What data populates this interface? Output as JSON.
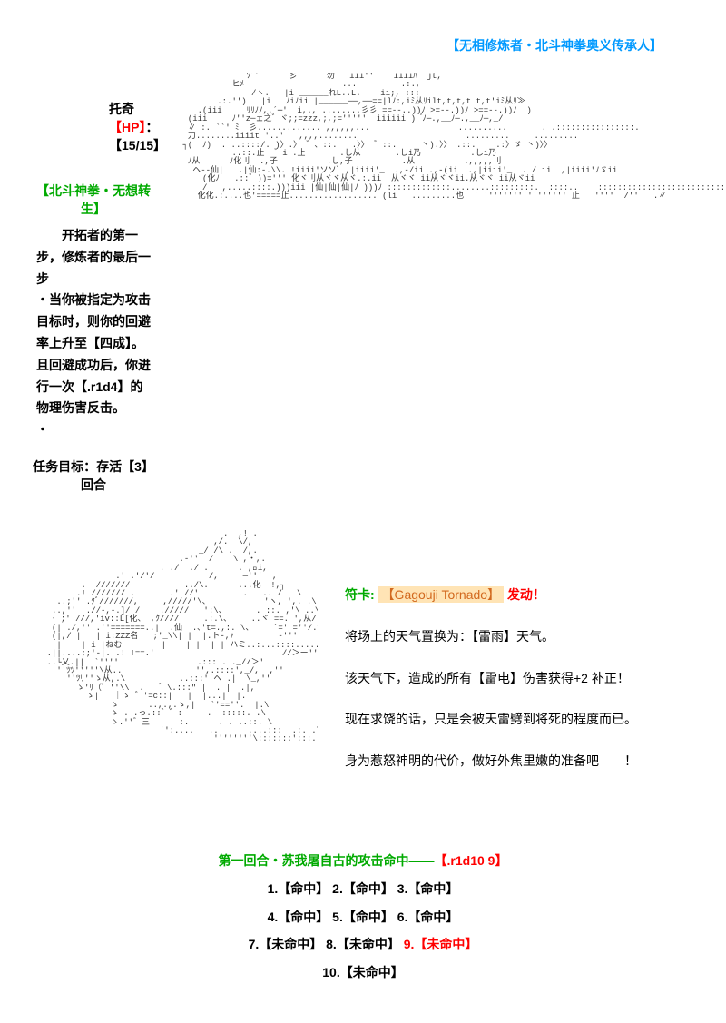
{
  "header": {
    "title": "【无相修炼者・北斗神拳奥义传承人】",
    "color": "#0099ff"
  },
  "character": {
    "name": "托奇",
    "hp_label": "【HP】",
    "hp_value": "：【15/15】"
  },
  "skill": {
    "title": "【北斗神拳・无想转生】",
    "title_color": "#00aa00",
    "line1": "开拓者的第一步，修炼者的最后一步",
    "line2": "・当你被指定为攻击目标时，则你的回避率上升至【四成】。且回避成功后，你进行一次【.r1d4】的物理伤害反击。",
    "line3": "・"
  },
  "task": {
    "label": "任务目标：",
    "value": "存活【3】回合"
  },
  "spell": {
    "prefix": "符卡:",
    "name": "【Gagouji Tornado】",
    "activate": " 发动！",
    "desc1": "将场上的天气置换为：【雷雨】天气。",
    "desc2": "该天气下，造成的所有【雷电】伤害获得+2 补正！",
    "desc3": "现在求饶的话，只是会被天雷劈到将死的程度而已。",
    "desc4": "身为惹怒神明的代价，做好外焦里嫩的准备吧——！"
  },
  "round": {
    "title_green": "第一回合・苏我屠自古的攻击命中——",
    "title_red": "【.r1d10 9】",
    "hits": [
      "1.【命中】 2.【命中】 3.【命中】",
      "4.【命中】 5.【命中】 6.【命中】"
    ],
    "miss_row_prefix": "7.【未命中】 8.【未命中】 ",
    "miss_highlight": "9.【未命中】",
    "miss_last": "10.【未命中】"
  },
  "ascii": {
    "art1": "              ｿﾞ´      彡      勿   iii''    iiiiﾊ  jt,\n           ヒﾒ                    ...         .:.,\n               /ヽ.   |i ______れL..L.    ii;, :::\n        .:.'')   |i   ﾉiﾉii |______──,──==|lﾉ:,iﾐ从ﾘilt,t,t,t t,t'iﾐ从ﾘ≫\n    .(iii     ﾘﾘﾉﾉ,.´┴'  i,., ........彡彡 ==--..))ﾉ >=--.))ﾉ >==--.))ﾉ  )\n  (iii     ﾉ''z─ェ之゛ヾ;;=zzz,;,;='''''  iiiiii )  ゙ﾉ─.,__ﾉ─.,__ﾉ─,_/\n  ∥ :. ``' ﾐ  彡............. ,,,,,,...                  ..........       . .::::::::::::::::.\n  刀........iiiit '..'   ,,,,........                      .........     .........\n ┐(  ﾉ)  . ..::::/. )〉.〉 ゛、::.   .〉〉 ゛::.     丶).〉〉 .::.    .:〉ゞ 丶)〉〉\n           ..::.止  ゛i .止       .し从       .しi乃          .しi乃\n  ﾉ从      ﾉ化刂  .,子          .し,子          .从          .,,,,,刂\n   ヘ--仙|   .|仙:-.\\\\. !iiii'ソソﾞ ,|iiii'_  .,-/ii .,-(ii  .,|iiii'_  . / ii  ,|iiii'ﾉゞii\n     (化ﾉ   .::゛))=''' 化ヾ刂从ヾヾ从ヾ.:.ii  从ヾヾ ii从ヾヾii.从ヾヾ ii从ヾii\n     /   ,.....::::.)))iii |仙|仙|仙|ﾉ )))ﾉ :::::::::::::........:::::::::.  ::::..    :::::::::::::::::::::::::::::::::::\n    化化.:....也'=====止.................. (li   .........也  ' ''''''''''''''''' 止   ''''  /''   .∥",
    "art2": "                                        .  ,! .\n                                      ,/.  \\/,\n                                   _/ /\\ .  /,.\n                               .-''  /    \\ ,・,.\n                           . ./  ./ .      . ,ﾞi,\n                  .' .'/'/           /,     ─'''  ,\n           .  ///////           ../\\.      ...化  !,┐\n          .! /////// .       .' //'         .   .. /   \\\n      ..;'' .ｸﾞ///////,     ,/////'\\、           'ヽ, ',. .\\\n     ..,''  .//-,-.]/ /    ./////   ':\\、      . ::. ,'\\ ..\\ヽ,.\n     ･ ;' ///,'iv::L[化、 ,ｸ////     .:.\\、    ..ヾ ==. ',从/ヽ\n     (| ./,'' .''=======..|  .仙  .､'t=.,:. \\、    `=' =''/.v.     \\\n     (|,/ |   | i:ZZZ名   ;'_\\\\| |  |.ト-,ｧ         -'''      ~''\n      ||   | i |ねむ        |    | |  | | ハミ..:...::::.....! :...\n    .||....;;'-|. .! !==.'                          //＞ー''\n    ..└乂.||  `''''                .::: . ._//＞'\n      ''ﾂﾂ'''''\\从..               '',.::::',_/,  ,''\n        ''ﾂﾘ''ゝ从,.\\           ..:::''ヘ .|  \\_,''\n          ゝ'ﾘ（゜''\\\\  .   ゛\\.:::\" |  . |  .|,\n            ゝ|   ｜ゝ ゛'=с::|   |  |...|  |.\n                 ゝ      ..,.,.ゝ,|   `'==''.  |.\\\n                 ゝ . .っ.::゛゛:     .  :::::. .\\\n                 ゝ.''゛三      :.      . . ..::. \\\n                           '':....   ..      ....:::  .:. .\\.\n                                      ''''''''\\:::::::':::.....::゛:.:\\."
  }
}
